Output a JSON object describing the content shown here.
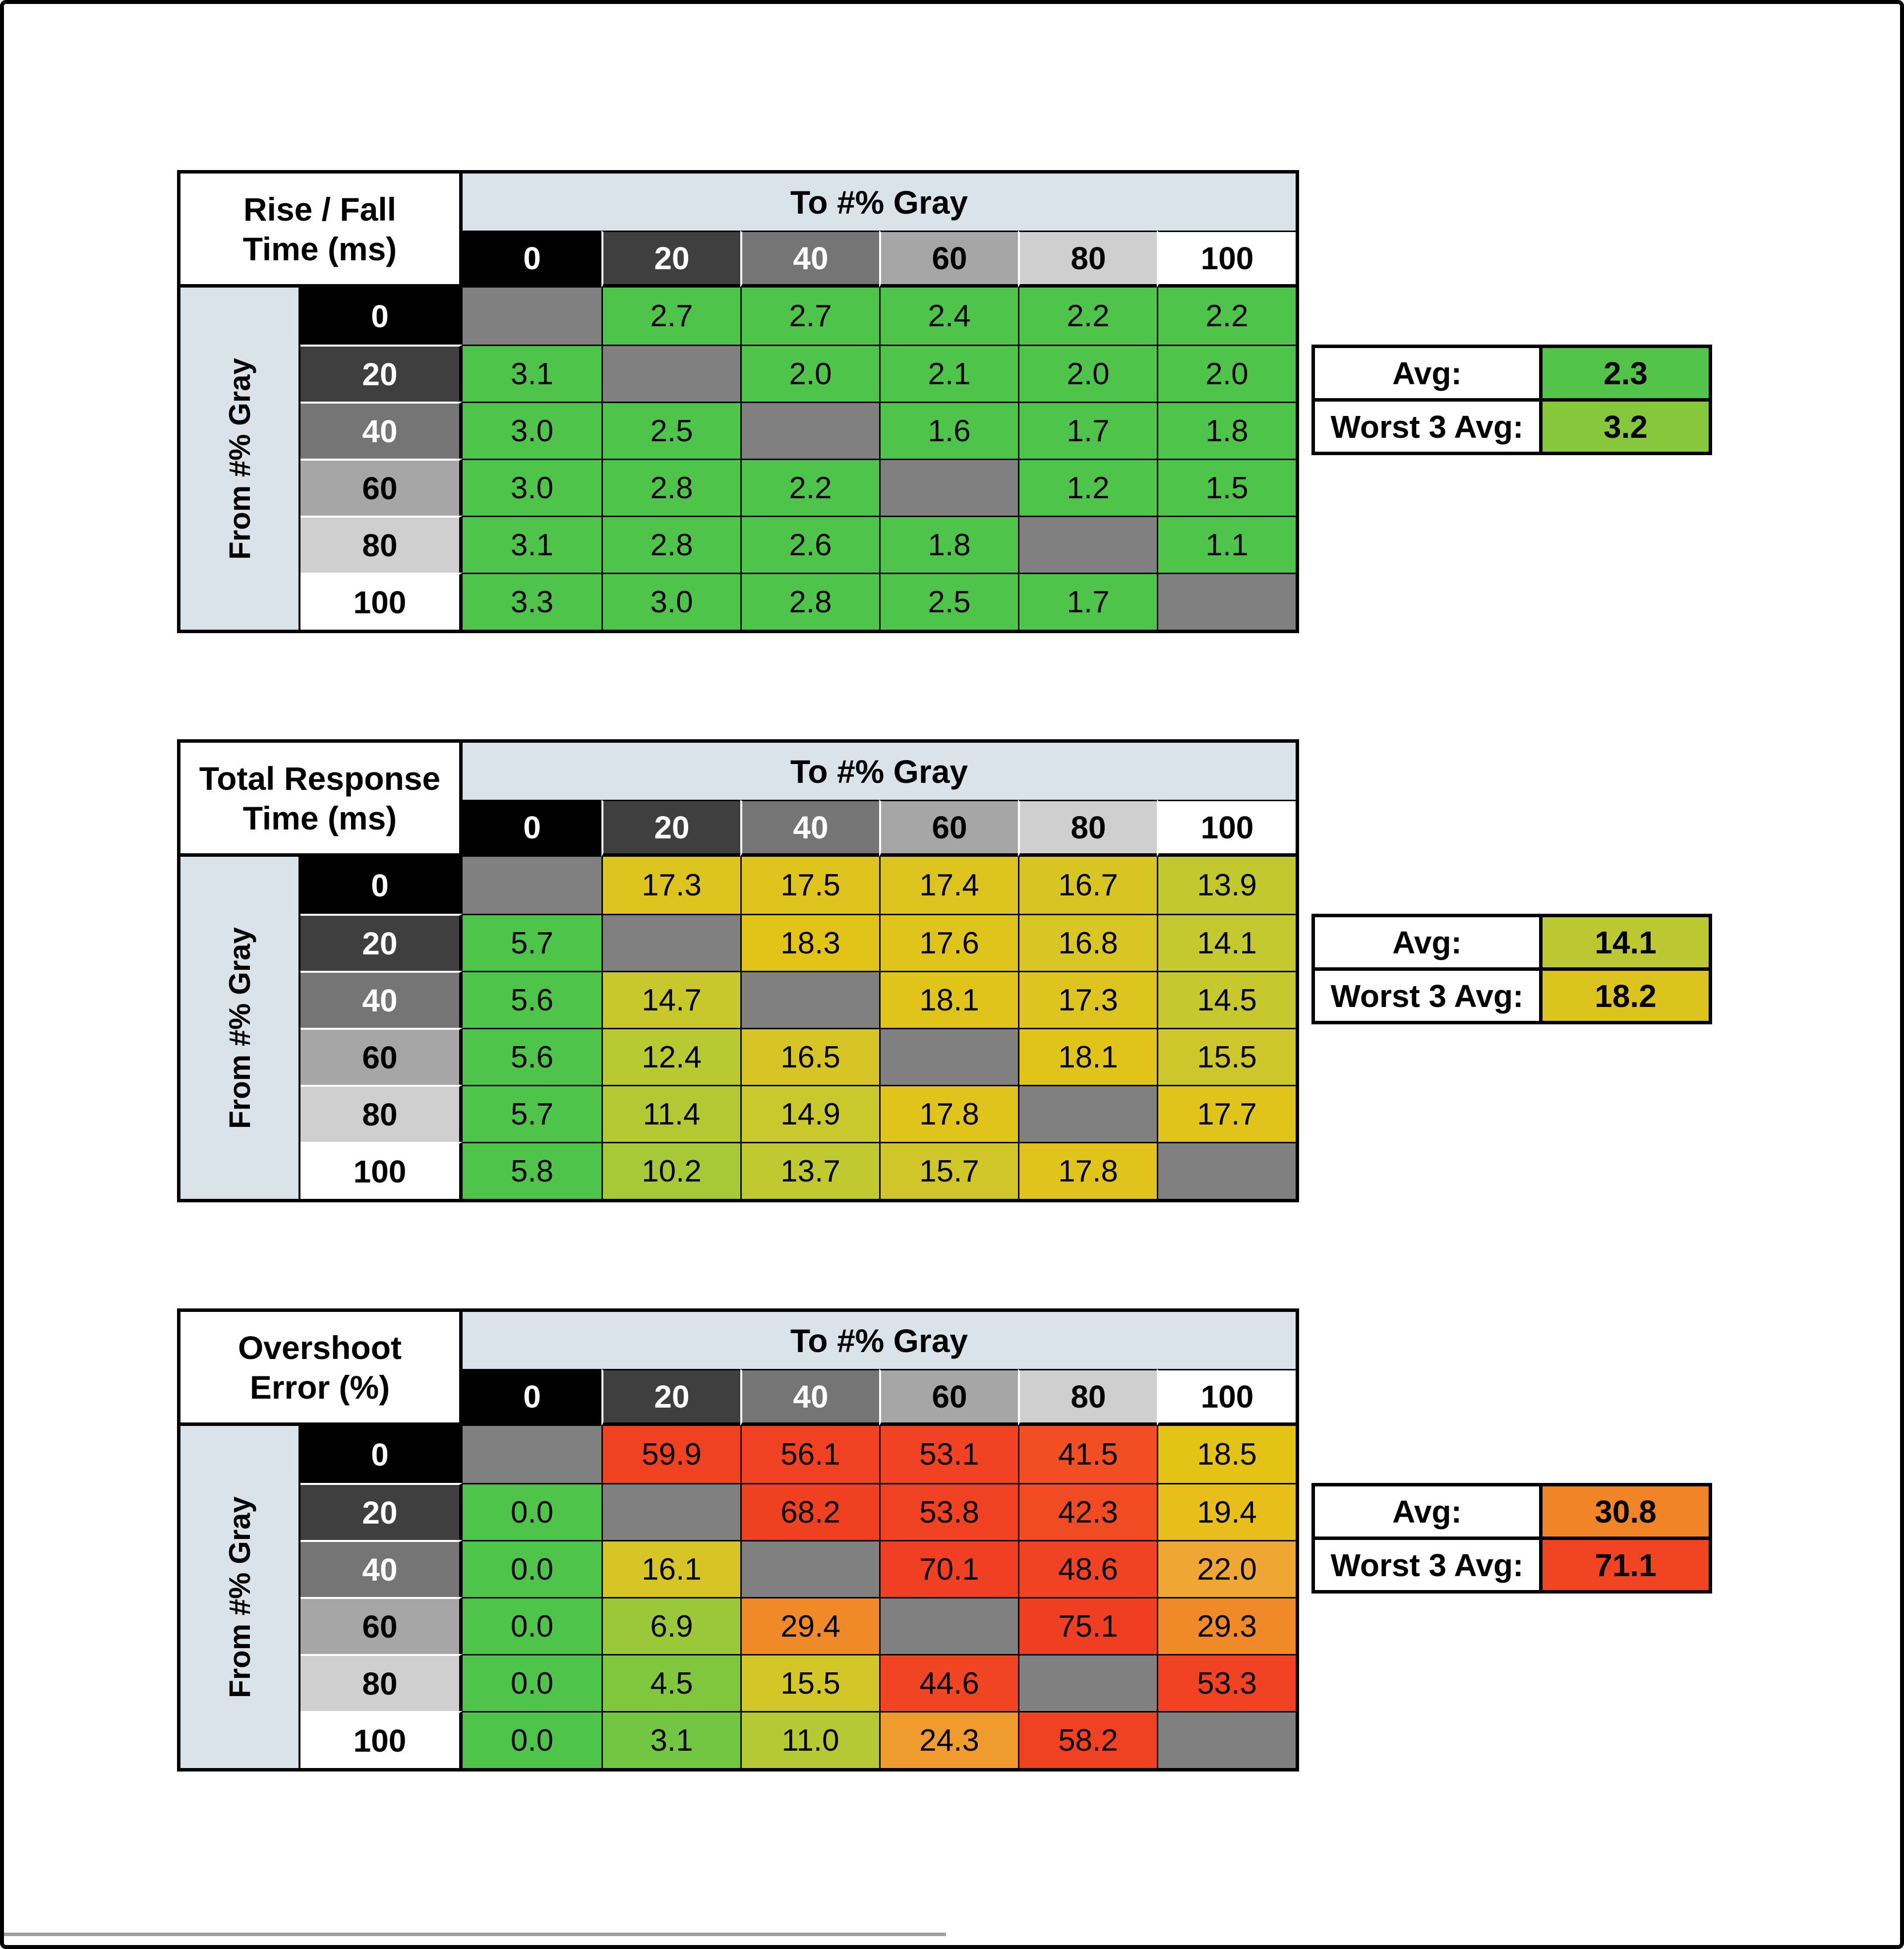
{
  "page": {
    "background": "#ffffff",
    "frame_color": "#000000",
    "band_color": "#dae3ea",
    "diagonal_color": "#808080"
  },
  "levels": {
    "labels": [
      "0",
      "20",
      "40",
      "60",
      "80",
      "100"
    ],
    "bg": [
      "#000000",
      "#3f3f3f",
      "#757575",
      "#a6a6a6",
      "#cfcfcf",
      "#ffffff"
    ],
    "fg": [
      "#ffffff",
      "#ffffff",
      "#ffffff",
      "#000000",
      "#000000",
      "#000000"
    ]
  },
  "color_scales": {
    "ms": [
      [
        0,
        "#4ec44a"
      ],
      [
        6,
        "#4ec44a"
      ],
      [
        10.5,
        "#aec936"
      ],
      [
        14,
        "#c2c92f"
      ],
      [
        16,
        "#d2c629"
      ],
      [
        17.5,
        "#dfc41d"
      ],
      [
        19,
        "#e4c312"
      ]
    ],
    "pct": [
      [
        0,
        "#4ec44a"
      ],
      [
        3,
        "#71c641"
      ],
      [
        7,
        "#9cc838"
      ],
      [
        11,
        "#b4c933"
      ],
      [
        15,
        "#d0c62a"
      ],
      [
        19,
        "#e6c313"
      ],
      [
        21,
        "#f0ab35"
      ],
      [
        25,
        "#f0972c"
      ],
      [
        30,
        "#f08827"
      ],
      [
        38,
        "#f05c26"
      ],
      [
        44,
        "#f14423"
      ],
      [
        100,
        "#ee3a21"
      ]
    ]
  },
  "chart_data": [
    {
      "type": "heatmap",
      "title": [
        "Rise / Fall",
        "Time (ms)"
      ],
      "col_header": "To #% Gray",
      "row_header": "From #% Gray",
      "columns": [
        "0",
        "20",
        "40",
        "60",
        "80",
        "100"
      ],
      "rows": [
        "0",
        "20",
        "40",
        "60",
        "80",
        "100"
      ],
      "scale": "ms",
      "values": [
        [
          null,
          "2.7",
          "2.7",
          "2.4",
          "2.2",
          "2.2"
        ],
        [
          "3.1",
          null,
          "2.0",
          "2.1",
          "2.0",
          "2.0"
        ],
        [
          "3.0",
          "2.5",
          null,
          "1.6",
          "1.7",
          "1.8"
        ],
        [
          "3.0",
          "2.8",
          "2.2",
          null,
          "1.2",
          "1.5"
        ],
        [
          "3.1",
          "2.8",
          "2.6",
          "1.8",
          null,
          "1.1"
        ],
        [
          "3.3",
          "3.0",
          "2.8",
          "2.5",
          "1.7",
          null
        ]
      ],
      "summary": {
        "avg_label": "Avg:",
        "avg": "2.3",
        "worst_label": "Worst 3 Avg:",
        "worst": "3.2"
      },
      "summary_colors": {
        "avg": "#52c44a",
        "worst": "#86c73c"
      }
    },
    {
      "type": "heatmap",
      "title": [
        "Total Response",
        "Time (ms)"
      ],
      "col_header": "To #% Gray",
      "row_header": "From #% Gray",
      "columns": [
        "0",
        "20",
        "40",
        "60",
        "80",
        "100"
      ],
      "rows": [
        "0",
        "20",
        "40",
        "60",
        "80",
        "100"
      ],
      "scale": "ms",
      "values": [
        [
          null,
          "17.3",
          "17.5",
          "17.4",
          "16.7",
          "13.9"
        ],
        [
          "5.7",
          null,
          "18.3",
          "17.6",
          "16.8",
          "14.1"
        ],
        [
          "5.6",
          "14.7",
          null,
          "18.1",
          "17.3",
          "14.5"
        ],
        [
          "5.6",
          "12.4",
          "16.5",
          null,
          "18.1",
          "15.5"
        ],
        [
          "5.7",
          "11.4",
          "14.9",
          "17.8",
          null,
          "17.7"
        ],
        [
          "5.8",
          "10.2",
          "13.7",
          "15.7",
          "17.8",
          null
        ]
      ],
      "summary": {
        "avg_label": "Avg:",
        "avg": "14.1",
        "worst_label": "Worst 3 Avg:",
        "worst": "18.2"
      },
      "summary_colors": {
        "avg": "#bcc832",
        "worst": "#dcc41e"
      }
    },
    {
      "type": "heatmap",
      "title": [
        "Overshoot",
        "Error (%)"
      ],
      "col_header": "To #% Gray",
      "row_header": "From #% Gray",
      "columns": [
        "0",
        "20",
        "40",
        "60",
        "80",
        "100"
      ],
      "rows": [
        "0",
        "20",
        "40",
        "60",
        "80",
        "100"
      ],
      "scale": "pct",
      "values": [
        [
          null,
          "59.9",
          "56.1",
          "53.1",
          "41.5",
          "18.5"
        ],
        [
          "0.0",
          null,
          "68.2",
          "53.8",
          "42.3",
          "19.4"
        ],
        [
          "0.0",
          "16.1",
          null,
          "70.1",
          "48.6",
          "22.0"
        ],
        [
          "0.0",
          "6.9",
          "29.4",
          null,
          "75.1",
          "29.3"
        ],
        [
          "0.0",
          "4.5",
          "15.5",
          "44.6",
          null,
          "53.3"
        ],
        [
          "0.0",
          "3.1",
          "11.0",
          "24.3",
          "58.2",
          null
        ]
      ],
      "summary": {
        "avg_label": "Avg:",
        "avg": "30.8",
        "worst_label": "Worst 3 Avg:",
        "worst": "71.1"
      },
      "summary_colors": {
        "avg": "#f08427",
        "worst": "#f14522"
      }
    }
  ]
}
